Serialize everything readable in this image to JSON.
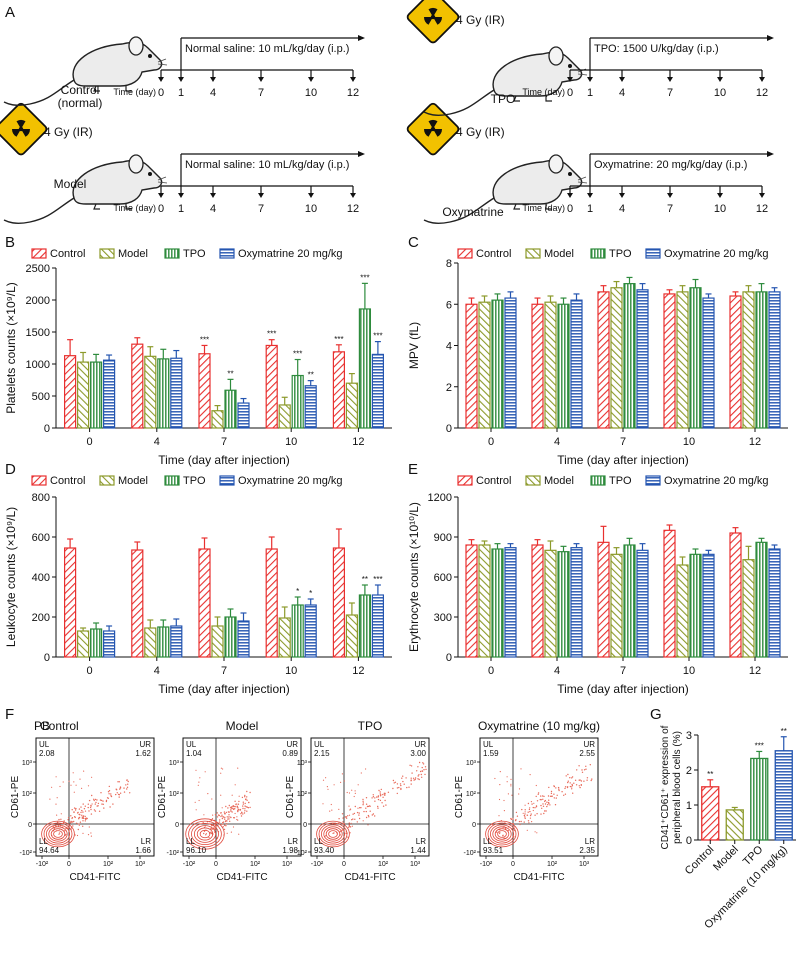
{
  "colors": {
    "control": "#e8302f",
    "model": "#8c9a2b",
    "tpo": "#2e8b3d",
    "oxy": "#2455b0",
    "hazard": "#f2c100"
  },
  "panel_labels": {
    "A": "A",
    "B": "B",
    "C": "C",
    "D": "D",
    "E": "E",
    "F": "F",
    "G": "G"
  },
  "legend": [
    "Control",
    "Model",
    "TPO",
    "Oxymatrine 20 mg/kg"
  ],
  "panelA": {
    "radiation": "4 Gy (IR)",
    "time_label": "Time (day)",
    "days": [
      "0",
      "1",
      "4",
      "7",
      "10",
      "12"
    ],
    "groups": [
      {
        "name": "Control\n(normal)",
        "treatment": "Normal saline: 10 mL/kg/day (i.p.)",
        "irradiated": false
      },
      {
        "name": "TPO",
        "treatment": "TPO: 1500 U/kg/day (i.p.)",
        "irradiated": true
      },
      {
        "name": "Model",
        "treatment": "Normal saline: 10 mL/kg/day (i.p.)",
        "irradiated": true
      },
      {
        "name": "Oxymatrine",
        "treatment": "Oxymatrine: 20 mg/kg/day (i.p.)",
        "irradiated": true
      }
    ]
  },
  "chart_data": [
    {
      "panel": "B",
      "type": "bar",
      "categories": [
        "0",
        "4",
        "7",
        "10",
        "12"
      ],
      "xlabel": "Time (day after injection)",
      "ylabel": "Platelets counts (×10⁹/L)",
      "ylim": [
        0,
        2500
      ],
      "yticks": [
        0,
        500,
        1000,
        1500,
        2000,
        2500
      ],
      "series": [
        {
          "name": "Control",
          "values": [
            1130,
            1310,
            1160,
            1290,
            1190
          ],
          "errors": [
            250,
            100,
            130,
            90,
            110
          ],
          "sig": [
            "",
            "",
            "***",
            "***",
            "***"
          ]
        },
        {
          "name": "Model",
          "values": [
            1030,
            1120,
            270,
            360,
            700
          ],
          "errors": [
            150,
            150,
            80,
            120,
            150
          ],
          "sig": [
            "",
            "",
            "",
            "",
            ""
          ]
        },
        {
          "name": "TPO",
          "values": [
            1030,
            1080,
            590,
            820,
            1860
          ],
          "errors": [
            120,
            150,
            170,
            250,
            400
          ],
          "sig": [
            "",
            "",
            "**",
            "***",
            "***"
          ]
        },
        {
          "name": "Oxymatrine 20 mg/kg",
          "values": [
            1060,
            1090,
            390,
            660,
            1150
          ],
          "errors": [
            80,
            120,
            70,
            80,
            200
          ],
          "sig": [
            "",
            "",
            "",
            "**",
            "***"
          ]
        }
      ]
    },
    {
      "panel": "C",
      "type": "bar",
      "categories": [
        "0",
        "4",
        "7",
        "10",
        "12"
      ],
      "xlabel": "Time (day after injection)",
      "ylabel": "MPV (fL)",
      "ylim": [
        0,
        8
      ],
      "yticks": [
        0,
        2,
        4,
        6,
        8
      ],
      "series": [
        {
          "name": "Control",
          "values": [
            6.0,
            6.0,
            6.6,
            6.5,
            6.4
          ],
          "errors": [
            0.3,
            0.3,
            0.3,
            0.2,
            0.2
          ],
          "sig": [
            "",
            "",
            "",
            "",
            ""
          ]
        },
        {
          "name": "Model",
          "values": [
            6.1,
            6.1,
            6.8,
            6.6,
            6.6
          ],
          "errors": [
            0.3,
            0.3,
            0.3,
            0.3,
            0.3
          ],
          "sig": [
            "",
            "",
            "",
            "",
            ""
          ]
        },
        {
          "name": "TPO",
          "values": [
            6.2,
            6.0,
            7.0,
            6.8,
            6.6
          ],
          "errors": [
            0.3,
            0.3,
            0.3,
            0.4,
            0.4
          ],
          "sig": [
            "",
            "",
            "",
            "",
            ""
          ]
        },
        {
          "name": "Oxymatrine 20 mg/kg",
          "values": [
            6.3,
            6.2,
            6.7,
            6.3,
            6.6
          ],
          "errors": [
            0.3,
            0.3,
            0.3,
            0.2,
            0.2
          ],
          "sig": [
            "",
            "",
            "",
            "",
            ""
          ]
        }
      ]
    },
    {
      "panel": "D",
      "type": "bar",
      "categories": [
        "0",
        "4",
        "7",
        "10",
        "12"
      ],
      "xlabel": "Time (day after injection)",
      "ylabel": "Leukocyte counts (×10⁹/L)",
      "ylim": [
        0,
        800
      ],
      "yticks": [
        0,
        200,
        400,
        600,
        800
      ],
      "series": [
        {
          "name": "Control",
          "values": [
            545,
            535,
            540,
            540,
            545
          ],
          "errors": [
            45,
            40,
            55,
            60,
            95
          ],
          "sig": [
            "",
            "",
            "",
            "",
            ""
          ]
        },
        {
          "name": "Model",
          "values": [
            130,
            145,
            155,
            195,
            210
          ],
          "errors": [
            15,
            40,
            45,
            55,
            60
          ],
          "sig": [
            "",
            "",
            "",
            "",
            ""
          ]
        },
        {
          "name": "TPO",
          "values": [
            140,
            150,
            200,
            260,
            310
          ],
          "errors": [
            30,
            35,
            40,
            40,
            50
          ],
          "sig": [
            "",
            "",
            "",
            "*",
            "**"
          ]
        },
        {
          "name": "Oxymatrine 20 mg/kg",
          "values": [
            130,
            155,
            180,
            260,
            310
          ],
          "errors": [
            25,
            35,
            40,
            30,
            50
          ],
          "sig": [
            "",
            "",
            "",
            "*",
            "***"
          ]
        }
      ]
    },
    {
      "panel": "E",
      "type": "bar",
      "categories": [
        "0",
        "4",
        "7",
        "10",
        "12"
      ],
      "xlabel": "Time (day after injection)",
      "ylabel": "Erythrocyte counts (×10¹⁰/L)",
      "ylim": [
        0,
        1200
      ],
      "yticks": [
        0,
        300,
        600,
        900,
        1200
      ],
      "series": [
        {
          "name": "Control",
          "values": [
            840,
            840,
            860,
            950,
            930
          ],
          "errors": [
            40,
            40,
            120,
            40,
            40
          ],
          "sig": [
            "",
            "",
            "",
            "",
            ""
          ]
        },
        {
          "name": "Model",
          "values": [
            840,
            800,
            770,
            690,
            730
          ],
          "errors": [
            30,
            70,
            50,
            60,
            100
          ],
          "sig": [
            "",
            "",
            "",
            "",
            ""
          ]
        },
        {
          "name": "TPO",
          "values": [
            810,
            790,
            840,
            770,
            860
          ],
          "errors": [
            40,
            40,
            50,
            40,
            30
          ],
          "sig": [
            "",
            "",
            "",
            "",
            ""
          ]
        },
        {
          "name": "Oxymatrine 20 mg/kg",
          "values": [
            820,
            820,
            800,
            770,
            810
          ],
          "errors": [
            30,
            30,
            50,
            30,
            30
          ],
          "sig": [
            "",
            "",
            "",
            "",
            ""
          ]
        }
      ]
    },
    {
      "panel": "G",
      "type": "bar",
      "categories": [
        "Control",
        "Model",
        "TPO",
        "Oxymatrine (10 mg/kg)"
      ],
      "ylabel": "CD41⁺CD61⁺ expression of peripheral blood cells (%)",
      "ylim": [
        0,
        3
      ],
      "yticks": [
        0,
        1,
        2,
        3
      ],
      "series": [
        {
          "name": "",
          "values": [
            1.52,
            0.86,
            2.33,
            2.55
          ],
          "errors": [
            0.2,
            0.07,
            0.2,
            0.4
          ],
          "sig": [
            "**",
            "",
            "***",
            "**"
          ]
        }
      ]
    }
  ],
  "panelF": {
    "pb_label": "PB",
    "xlabel": "CD41-FITC",
    "ylabel": "CD61-PE",
    "yticks": [
      "10³",
      "10²",
      "0",
      "-10²"
    ],
    "xticks": [
      "-10²",
      "0",
      "10²",
      "10³"
    ],
    "plots": [
      {
        "title": "Control",
        "ul": "UL",
        "ul_val": "2.08",
        "ur": "UR",
        "ur_val": "1.62",
        "ll": "LL",
        "ll_val": "94.64",
        "lr": "LR",
        "lr_val": "1.66"
      },
      {
        "title": "Model",
        "ul": "UL",
        "ul_val": "1.04",
        "ur": "UR",
        "ur_val": "0.89",
        "ll": "LL",
        "ll_val": "96.10",
        "lr": "LR",
        "lr_val": "1.98"
      },
      {
        "title": "TPO",
        "ul": "UL",
        "ul_val": "2.15",
        "ur": "UR",
        "ur_val": "3.00",
        "ll": "LL",
        "ll_val": "93.40",
        "lr": "LR",
        "lr_val": "1.44"
      },
      {
        "title": "Oxymatrine (10 mg/kg)",
        "ul": "UL",
        "ul_val": "1.59",
        "ur": "UR",
        "ur_val": "2.55",
        "ll": "LL",
        "ll_val": "93.51",
        "lr": "LR",
        "lr_val": "2.35"
      }
    ]
  }
}
